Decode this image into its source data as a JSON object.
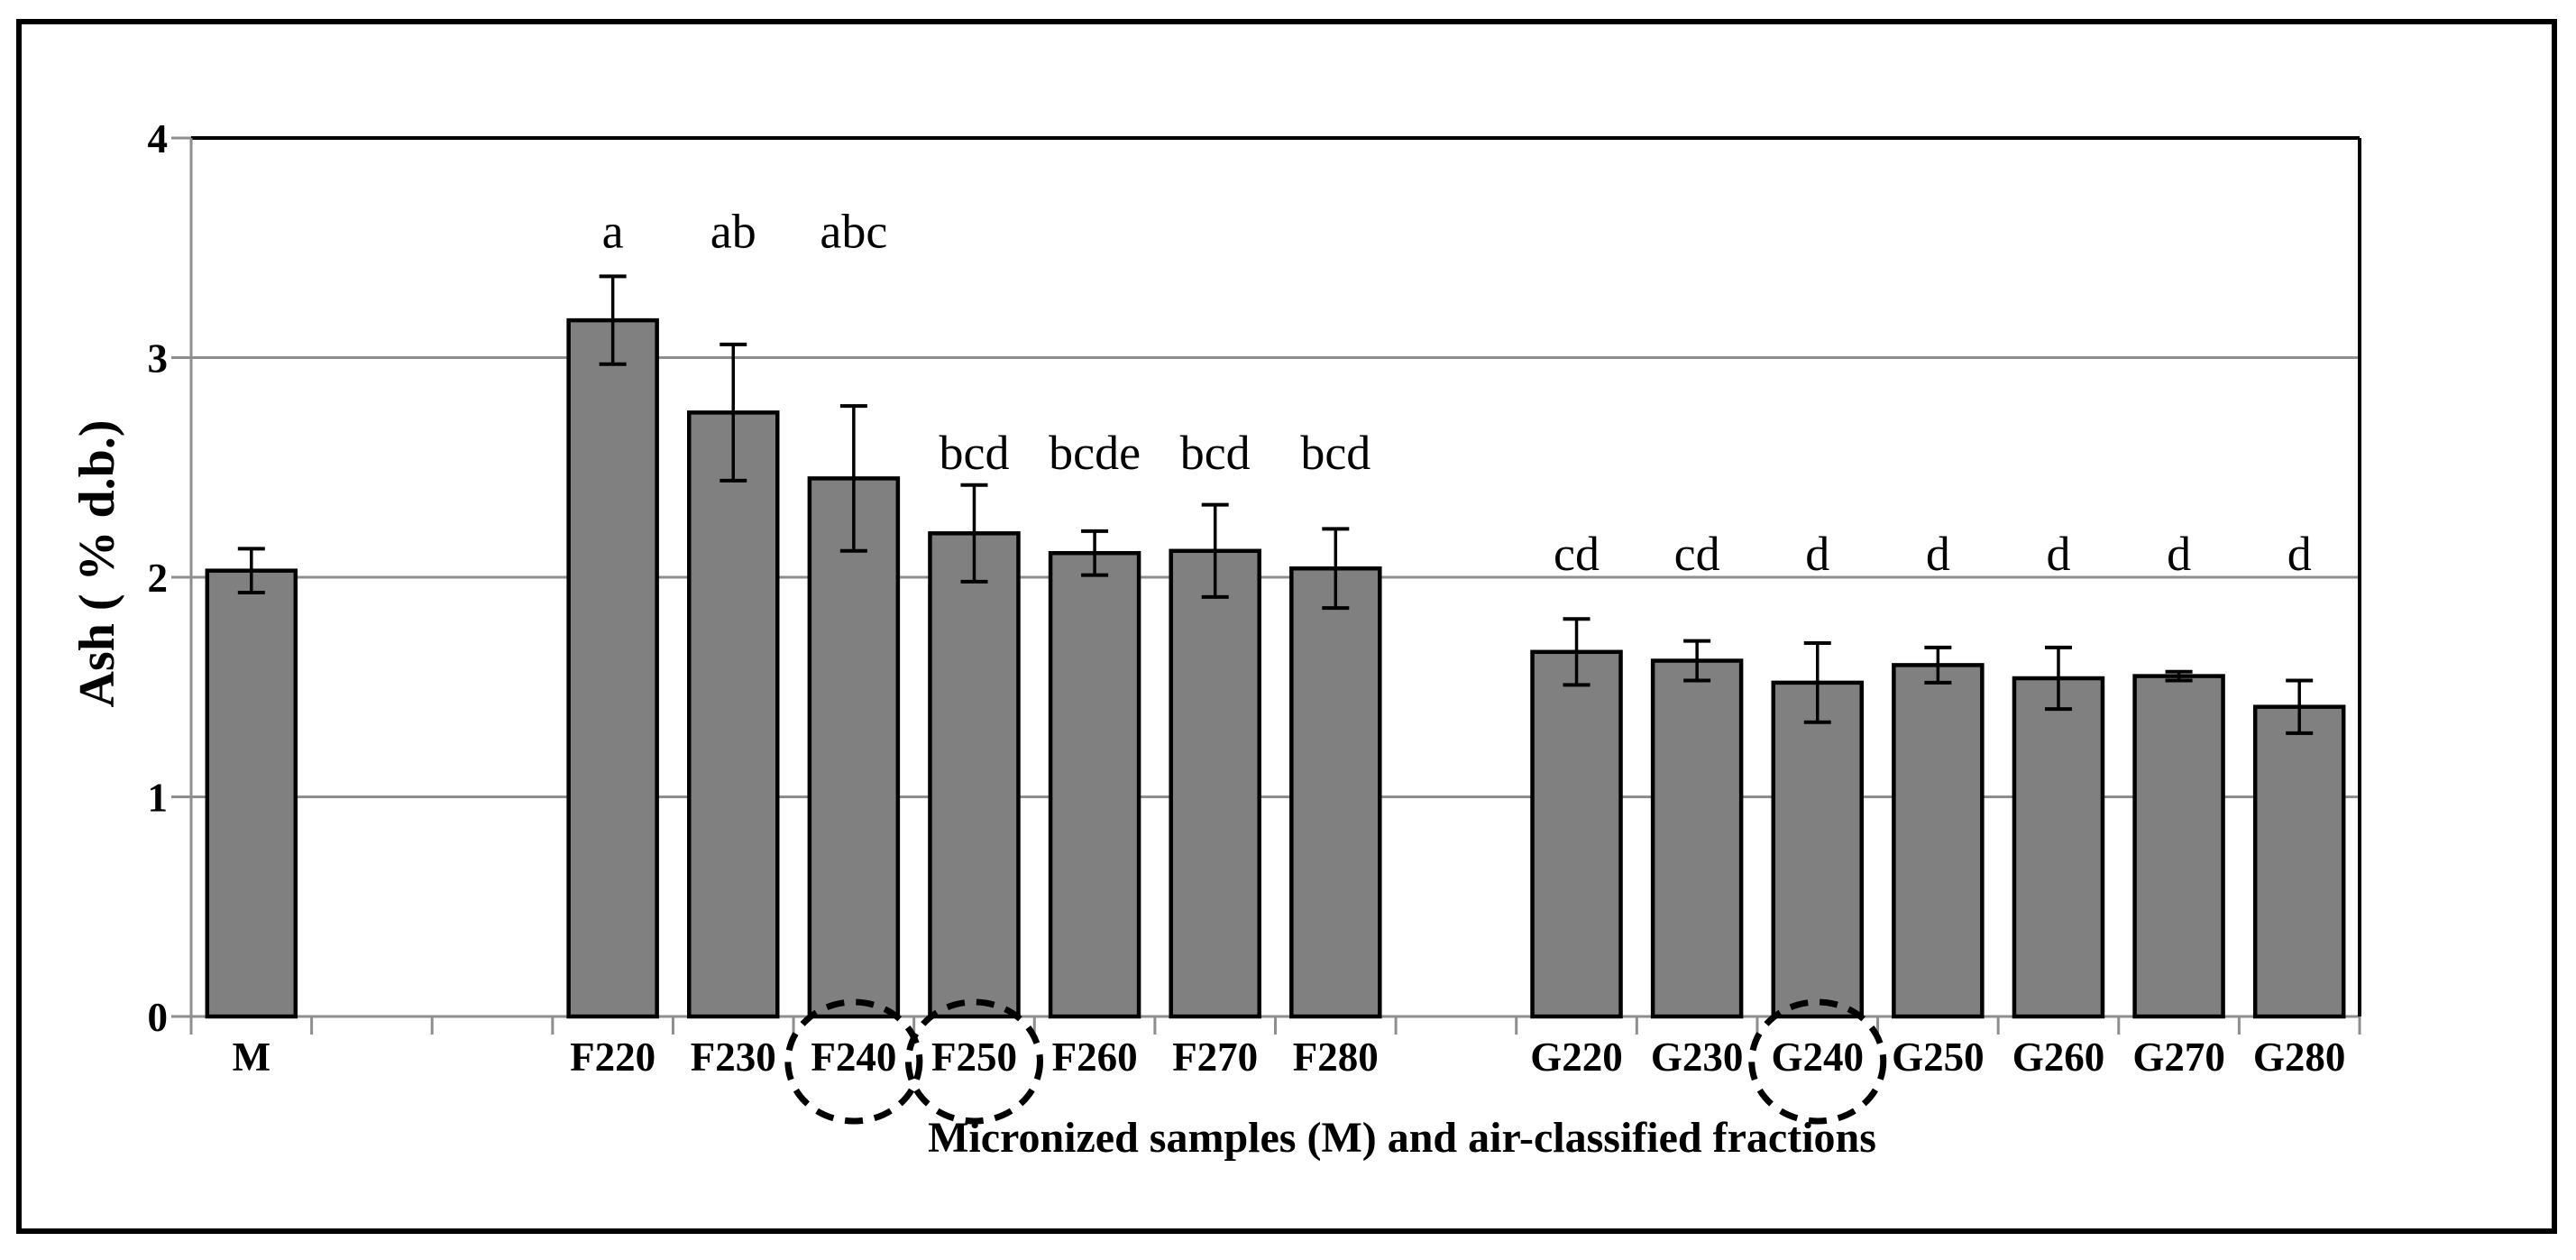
{
  "figure": {
    "background": "#ffffff",
    "outer_border_color": "#000000"
  },
  "chart_data": {
    "type": "bar",
    "title": "",
    "xlabel": "Micronized samples (M) and air-classified fractions",
    "ylabel": "Ash ( % d.b.)",
    "ylim": [
      0,
      4
    ],
    "yticks": [
      0,
      1,
      2,
      3,
      4
    ],
    "grid": "horizontal",
    "legend": "none",
    "bar_color": "#808080",
    "bar_edge_color": "#000000",
    "gridline_color": "#8e8e8e",
    "axis_color": "#8e8e8e",
    "error_bar_color": "#000000",
    "annotation_circle_style": "dashed-black-ellipse",
    "n_slots": 18,
    "categories": [
      {
        "label": "M",
        "value": 2.03,
        "error": 0.1,
        "letter": "",
        "letter_y": null,
        "slot": 0,
        "circled": false
      },
      {
        "label": "F220",
        "value": 3.17,
        "error": 0.2,
        "letter": "a",
        "letter_y": 3.58,
        "slot": 3,
        "circled": false
      },
      {
        "label": "F230",
        "value": 2.75,
        "error": 0.31,
        "letter": "ab",
        "letter_y": 3.58,
        "slot": 4,
        "circled": false
      },
      {
        "label": "F240",
        "value": 2.45,
        "error": 0.33,
        "letter": "abc",
        "letter_y": 3.58,
        "slot": 5,
        "circled": true
      },
      {
        "label": "F250",
        "value": 2.2,
        "error": 0.22,
        "letter": "bcd",
        "letter_y": 2.57,
        "slot": 6,
        "circled": true
      },
      {
        "label": "F260",
        "value": 2.11,
        "error": 0.1,
        "letter": "bcde",
        "letter_y": 2.57,
        "slot": 7,
        "circled": false
      },
      {
        "label": "F270",
        "value": 2.12,
        "error": 0.21,
        "letter": "bcd",
        "letter_y": 2.57,
        "slot": 8,
        "circled": false
      },
      {
        "label": "F280",
        "value": 2.04,
        "error": 0.18,
        "letter": "bcd",
        "letter_y": 2.57,
        "slot": 9,
        "circled": false
      },
      {
        "label": "G220",
        "value": 1.66,
        "error": 0.15,
        "letter": "cd",
        "letter_y": 2.11,
        "slot": 11,
        "circled": false
      },
      {
        "label": "G230",
        "value": 1.62,
        "error": 0.09,
        "letter": "cd",
        "letter_y": 2.11,
        "slot": 12,
        "circled": false
      },
      {
        "label": "G240",
        "value": 1.52,
        "error": 0.18,
        "letter": "d",
        "letter_y": 2.11,
        "slot": 13,
        "circled": true
      },
      {
        "label": "G250",
        "value": 1.6,
        "error": 0.08,
        "letter": "d",
        "letter_y": 2.11,
        "slot": 14,
        "circled": false
      },
      {
        "label": "G260",
        "value": 1.54,
        "error": 0.14,
        "letter": "d",
        "letter_y": 2.11,
        "slot": 15,
        "circled": false
      },
      {
        "label": "G270",
        "value": 1.55,
        "error": 0.02,
        "letter": "d",
        "letter_y": 2.11,
        "slot": 16,
        "circled": false
      },
      {
        "label": "G280",
        "value": 1.41,
        "error": 0.12,
        "letter": "d",
        "letter_y": 2.11,
        "slot": 17,
        "circled": false
      }
    ]
  }
}
